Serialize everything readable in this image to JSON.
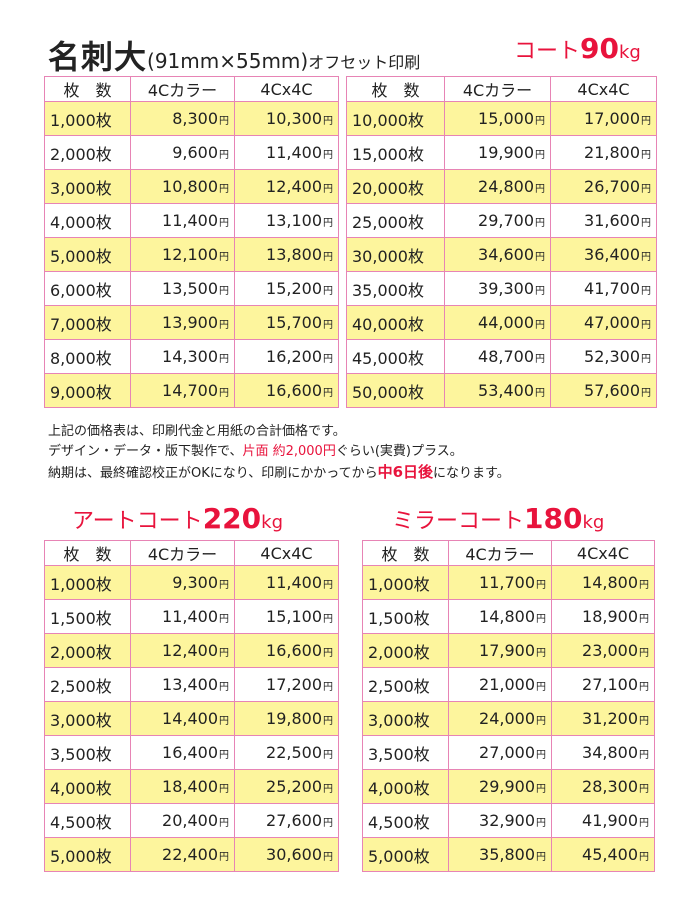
{
  "header": {
    "title_main": "名刺大",
    "title_spec": "(91mm×55mm)",
    "title_sub": "オフセット印刷",
    "paper_name": "コート",
    "paper_weight": "90",
    "paper_unit": "kg"
  },
  "yen": "円",
  "columns": [
    "枚　数",
    "4Cカラー",
    "4Cx4C"
  ],
  "coat_left": [
    [
      "1,000枚",
      "8,300",
      "10,300"
    ],
    [
      "2,000枚",
      "9,600",
      "11,400"
    ],
    [
      "3,000枚",
      "10,800",
      "12,400"
    ],
    [
      "4,000枚",
      "11,400",
      "13,100"
    ],
    [
      "5,000枚",
      "12,100",
      "13,800"
    ],
    [
      "6,000枚",
      "13,500",
      "15,200"
    ],
    [
      "7,000枚",
      "13,900",
      "15,700"
    ],
    [
      "8,000枚",
      "14,300",
      "16,200"
    ],
    [
      "9,000枚",
      "14,700",
      "16,600"
    ]
  ],
  "coat_right": [
    [
      "10,000枚",
      "15,000",
      "17,000"
    ],
    [
      "15,000枚",
      "19,900",
      "21,800"
    ],
    [
      "20,000枚",
      "24,800",
      "26,700"
    ],
    [
      "25,000枚",
      "29,700",
      "31,600"
    ],
    [
      "30,000枚",
      "34,600",
      "36,400"
    ],
    [
      "35,000枚",
      "39,300",
      "41,700"
    ],
    [
      "40,000枚",
      "44,000",
      "47,000"
    ],
    [
      "45,000枚",
      "48,700",
      "52,300"
    ],
    [
      "50,000枚",
      "53,400",
      "57,600"
    ]
  ],
  "notes": {
    "line1": "上記の価格表は、印刷代金と用紙の合計価格です。",
    "line2_a": "デザイン・データ・版下製作で、",
    "line2_b": "片面 約2,000円",
    "line2_c": "ぐらい(実費)プラス。",
    "line3_a": "納期は、最終確認校正がOKになり、印刷にかかってから",
    "line3_b": "中6日後",
    "line3_c": "になります。"
  },
  "art": {
    "name": "アートコート",
    "weight": "220",
    "unit": "kg",
    "rows": [
      [
        "1,000枚",
        "9,300",
        "11,400"
      ],
      [
        "1,500枚",
        "11,400",
        "15,100"
      ],
      [
        "2,000枚",
        "12,400",
        "16,600"
      ],
      [
        "2,500枚",
        "13,400",
        "17,200"
      ],
      [
        "3,000枚",
        "14,400",
        "19,800"
      ],
      [
        "3,500枚",
        "16,400",
        "22,500"
      ],
      [
        "4,000枚",
        "18,400",
        "25,200"
      ],
      [
        "4,500枚",
        "20,400",
        "27,600"
      ],
      [
        "5,000枚",
        "22,400",
        "30,600"
      ]
    ]
  },
  "mirror": {
    "name": "ミラーコート",
    "weight": "180",
    "unit": "kg",
    "rows": [
      [
        "1,000枚",
        "11,700",
        "14,800"
      ],
      [
        "1,500枚",
        "14,800",
        "18,900"
      ],
      [
        "2,000枚",
        "17,900",
        "23,000"
      ],
      [
        "2,500枚",
        "21,000",
        "27,100"
      ],
      [
        "3,000枚",
        "24,000",
        "31,200"
      ],
      [
        "3,500枚",
        "27,000",
        "34,800"
      ],
      [
        "4,000枚",
        "29,900",
        "28,300"
      ],
      [
        "4,500枚",
        "32,900",
        "41,900"
      ],
      [
        "5,000枚",
        "35,800",
        "45,400"
      ]
    ]
  }
}
